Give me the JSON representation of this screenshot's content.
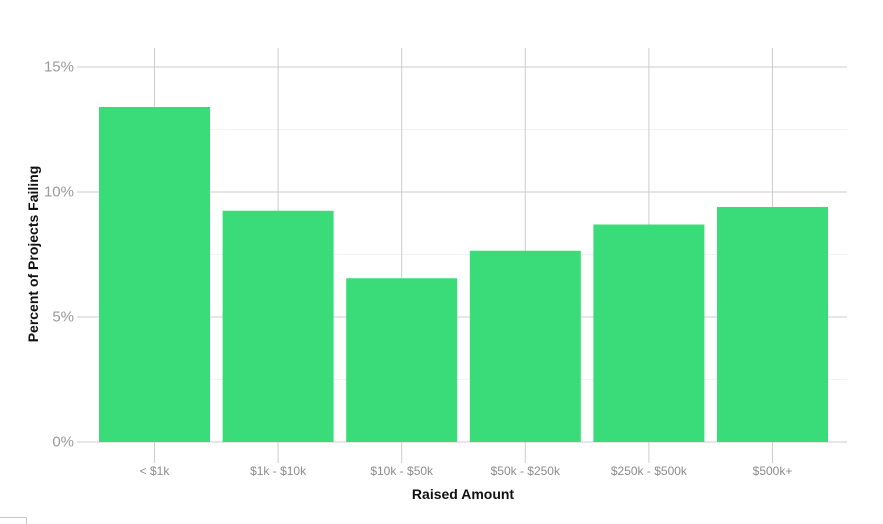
{
  "chart_data": {
    "type": "bar",
    "title": "",
    "xlabel": "Raised Amount",
    "ylabel": "Percent of Projects Failing",
    "categories": [
      "< $1k",
      "$1k - $10k",
      "$10k - $50k",
      "$50k - $250k",
      "$250k - $500k",
      "$500k+"
    ],
    "values": [
      13.4,
      9.25,
      6.55,
      7.65,
      8.7,
      9.4
    ],
    "unit": "%",
    "ylim": [
      0,
      15
    ],
    "yticks": [
      0,
      5,
      10,
      15
    ],
    "ytick_labels": [
      "0%",
      "5%",
      "10%",
      "15%"
    ],
    "minor_gridlines": [
      2.5,
      7.5,
      12.5
    ],
    "grid": true,
    "legend": null,
    "bar_color": "#3ADC7A"
  },
  "colors": {
    "bar": "#3ADC7A",
    "major_grid": "#cfcbd4",
    "minor_grid": "#f3f3f3",
    "tick_text": "#999999",
    "axis_title": "#111111"
  }
}
